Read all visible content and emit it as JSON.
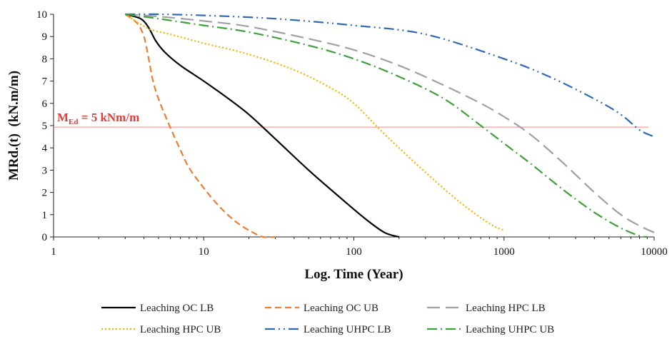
{
  "chart_data": {
    "type": "line",
    "xlabel": "Log. Time (Year)",
    "ylabel": "MRd.(t)  (kN.m/m)",
    "x_scale": "log",
    "xlim": [
      1,
      10000
    ],
    "ylim": [
      0,
      10
    ],
    "x_ticks": [
      "1",
      "10",
      "100",
      "1000",
      "10000"
    ],
    "y_ticks": [
      "0",
      "1",
      "2",
      "3",
      "4",
      "5",
      "6",
      "7",
      "8",
      "9",
      "10"
    ],
    "grid": false,
    "legend_position": "bottom",
    "annotation": {
      "prefix": "M",
      "subscript": "Ed",
      "suffix": " = 5 kNm/m",
      "y": 4.93,
      "color": "#e63a3a",
      "line_color": "#f08a8a"
    },
    "series": [
      {
        "name": "Leaching OC LB",
        "color": "#000000",
        "dash": "",
        "points": [
          [
            3,
            10
          ],
          [
            3.8,
            9.8
          ],
          [
            4.3,
            9.4
          ],
          [
            4.8,
            8.8
          ],
          [
            5.5,
            8.3
          ],
          [
            7,
            7.7
          ],
          [
            10,
            7.0
          ],
          [
            14,
            6.3
          ],
          [
            20,
            5.5
          ],
          [
            30,
            4.4
          ],
          [
            50,
            3.0
          ],
          [
            80,
            1.8
          ],
          [
            120,
            0.8
          ],
          [
            160,
            0.2
          ],
          [
            200,
            0.0
          ]
        ]
      },
      {
        "name": "Leaching OC UB",
        "color": "#ed7d31",
        "dash": "9,5",
        "points": [
          [
            3,
            10
          ],
          [
            3.6,
            9.6
          ],
          [
            4.0,
            9.0
          ],
          [
            4.3,
            8.0
          ],
          [
            4.6,
            7.0
          ],
          [
            5.0,
            6.2
          ],
          [
            5.5,
            5.5
          ],
          [
            6.0,
            4.9
          ],
          [
            7,
            3.9
          ],
          [
            8,
            3.1
          ],
          [
            10,
            2.2
          ],
          [
            13,
            1.3
          ],
          [
            17,
            0.6
          ],
          [
            22,
            0.15
          ],
          [
            25,
            0.0
          ],
          [
            30,
            0.0
          ]
        ]
      },
      {
        "name": "Leaching HPC LB",
        "color": "#a0a0a0",
        "dash": "18,8",
        "points": [
          [
            3,
            10
          ],
          [
            5,
            9.9
          ],
          [
            10,
            9.7
          ],
          [
            20,
            9.45
          ],
          [
            50,
            8.9
          ],
          [
            100,
            8.4
          ],
          [
            200,
            7.7
          ],
          [
            400,
            6.8
          ],
          [
            700,
            6.0
          ],
          [
            1000,
            5.4
          ],
          [
            1500,
            4.6
          ],
          [
            2500,
            3.3
          ],
          [
            4000,
            2.0
          ],
          [
            6000,
            1.0
          ],
          [
            8000,
            0.5
          ],
          [
            10000,
            0.2
          ]
        ]
      },
      {
        "name": "Leaching HPC UB",
        "color": "#f4b400",
        "dash": "2,3",
        "points": [
          [
            3,
            10
          ],
          [
            3.7,
            9.6
          ],
          [
            4.5,
            9.3
          ],
          [
            6,
            9.1
          ],
          [
            10,
            8.7
          ],
          [
            20,
            8.2
          ],
          [
            40,
            7.5
          ],
          [
            70,
            6.7
          ],
          [
            100,
            6.0
          ],
          [
            150,
            4.8
          ],
          [
            200,
            4.0
          ],
          [
            300,
            2.9
          ],
          [
            500,
            1.6
          ],
          [
            800,
            0.6
          ],
          [
            1000,
            0.3
          ]
        ]
      },
      {
        "name": "Leaching UHPC LB",
        "color": "#2e6ab5",
        "dash": "14,5,2,5,2,5",
        "points": [
          [
            3,
            10
          ],
          [
            5,
            10
          ],
          [
            10,
            9.95
          ],
          [
            30,
            9.8
          ],
          [
            100,
            9.5
          ],
          [
            300,
            9.1
          ],
          [
            1000,
            8.0
          ],
          [
            2000,
            7.2
          ],
          [
            4000,
            6.2
          ],
          [
            6000,
            5.5
          ],
          [
            8000,
            4.8
          ],
          [
            10000,
            4.5
          ]
        ]
      },
      {
        "name": "Leaching UHPC UB",
        "color": "#3ea03a",
        "dash": "14,5,2,5",
        "points": [
          [
            3,
            10
          ],
          [
            5,
            9.8
          ],
          [
            10,
            9.5
          ],
          [
            20,
            9.2
          ],
          [
            50,
            8.6
          ],
          [
            100,
            8.0
          ],
          [
            200,
            7.2
          ],
          [
            400,
            6.2
          ],
          [
            700,
            5.0
          ],
          [
            1000,
            4.2
          ],
          [
            1500,
            3.3
          ],
          [
            2500,
            2.1
          ],
          [
            4000,
            1.1
          ],
          [
            6000,
            0.4
          ],
          [
            8000,
            0.05
          ],
          [
            9000,
            0.0
          ]
        ]
      }
    ]
  }
}
